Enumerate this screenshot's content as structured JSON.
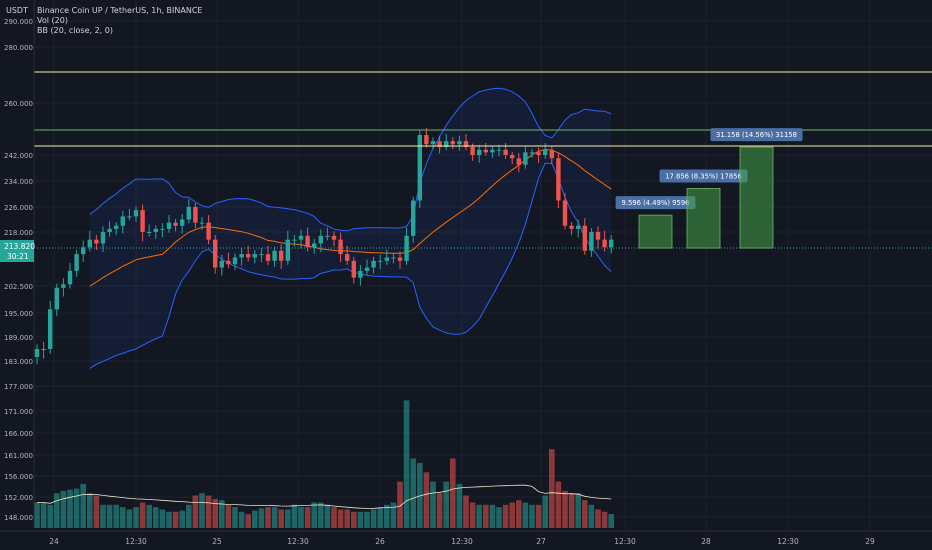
{
  "currency": "USDT",
  "legend": {
    "title": "Binance Coin UP / TetherUS, 1h, BINANCE",
    "indicators": [
      "Vol (20)",
      "BB (20, close, 2, 0)"
    ]
  },
  "colors": {
    "background": "#131722",
    "up": "#26a69a",
    "down": "#ef5350",
    "bb_band": "#2962ff",
    "bb_basis": "#ff6d00",
    "h_line_yellow": "#f7f29a",
    "h_line_green": "#66bb6a",
    "target_fill": "#43a047"
  },
  "chart_data": {
    "type": "candlestick",
    "y_ticks": [
      "290.000",
      "280.000",
      "260.000",
      "242.000",
      "234.000",
      "226.000",
      "218.000",
      "202.500",
      "195.000",
      "189.000",
      "183.000",
      "177.000",
      "171.000",
      "166.000",
      "161.000",
      "156.000",
      "152.000",
      "148.000"
    ],
    "x_ticks": [
      "24",
      "12:30",
      "25",
      "12:30",
      "26",
      "12:30",
      "27",
      "12:30",
      "28",
      "12:30",
      "29"
    ],
    "horizontal_lines": [
      {
        "value": 271.269,
        "label": "271.269",
        "color": "yellow"
      },
      {
        "value": 250.66,
        "label": "250.660",
        "color": "green"
      },
      {
        "value": 245.404,
        "label": "245.404",
        "color": "yellow"
      }
    ],
    "last_price": {
      "value": 213.82,
      "label": "213.820",
      "countdown": "30:21"
    },
    "targets": [
      {
        "label": "9.596 (4.49%) 9596",
        "base": 213.8,
        "top": 223.4
      },
      {
        "label": "17.856 (8.35%) 17856",
        "base": 213.8,
        "top": 231.7
      },
      {
        "label": "31.158 (14.56%) 31158",
        "base": 213.8,
        "top": 245.0
      }
    ],
    "closes": [
      186,
      186,
      196,
      202,
      203,
      207,
      212,
      214,
      216,
      215,
      218,
      219,
      220,
      223,
      223,
      225,
      218,
      218,
      219,
      219,
      221,
      220,
      222,
      226,
      221,
      221,
      216,
      208,
      210,
      209,
      211,
      212,
      211,
      212,
      212,
      210,
      213,
      210,
      216,
      216,
      217,
      214,
      215,
      217,
      217,
      216,
      212,
      210,
      205,
      207,
      208,
      210,
      210,
      211,
      211,
      210,
      217,
      228,
      249,
      246,
      247,
      245,
      247,
      246,
      247,
      245,
      242,
      244,
      243,
      244,
      244,
      242,
      241,
      239,
      243,
      243,
      242,
      244,
      241,
      228,
      220,
      219,
      220,
      213,
      218,
      216,
      214,
      216
    ],
    "volumes": [
      22,
      22,
      20,
      30,
      32,
      33,
      34,
      38,
      30,
      28,
      20,
      20,
      20,
      18,
      16,
      18,
      22,
      20,
      18,
      16,
      14,
      14,
      15,
      20,
      28,
      30,
      28,
      25,
      24,
      20,
      18,
      14,
      12,
      15,
      17,
      18,
      18,
      16,
      16,
      20,
      18,
      18,
      22,
      22,
      20,
      18,
      16,
      16,
      14,
      14,
      14,
      16,
      18,
      20,
      22,
      40,
      110,
      60,
      56,
      48,
      40,
      30,
      40,
      60,
      38,
      28,
      22,
      20,
      20,
      20,
      18,
      20,
      22,
      24,
      22,
      20,
      20,
      28,
      68,
      40,
      32,
      30,
      30,
      24,
      20,
      16,
      14,
      12
    ]
  }
}
